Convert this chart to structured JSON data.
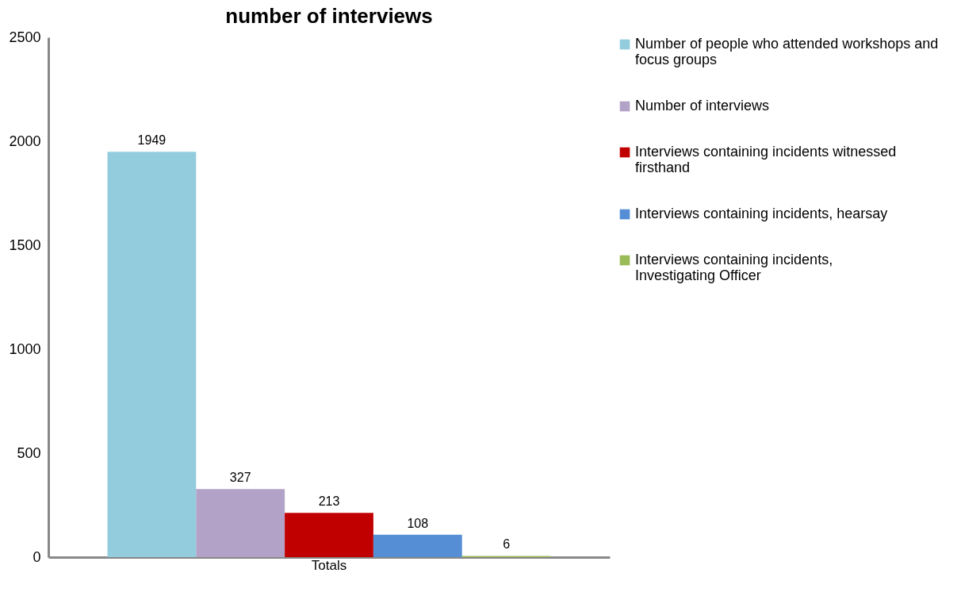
{
  "chart_data": {
    "type": "bar",
    "title": "number of interviews",
    "categories": [
      "Totals"
    ],
    "series": [
      {
        "name": "Number of people who attended workshops and focus groups",
        "color": "#93cddd",
        "values": [
          1949
        ]
      },
      {
        "name": "Number of interviews",
        "color": "#b3a2c7",
        "values": [
          327
        ]
      },
      {
        "name": "Interviews containing incidents witnessed firsthand",
        "color": "#c00000",
        "values": [
          213
        ]
      },
      {
        "name": "Interviews containing incidents, hearsay",
        "color": "#558ed5",
        "values": [
          108
        ]
      },
      {
        "name": "Interviews containing incidents, Investigating Officer",
        "color": "#9bbb59",
        "values": [
          6
        ]
      }
    ],
    "ylim": [
      0,
      2500
    ],
    "yticks": [
      0,
      500,
      1000,
      1500,
      2000,
      2500
    ],
    "data_labels": true,
    "legend": "right"
  }
}
